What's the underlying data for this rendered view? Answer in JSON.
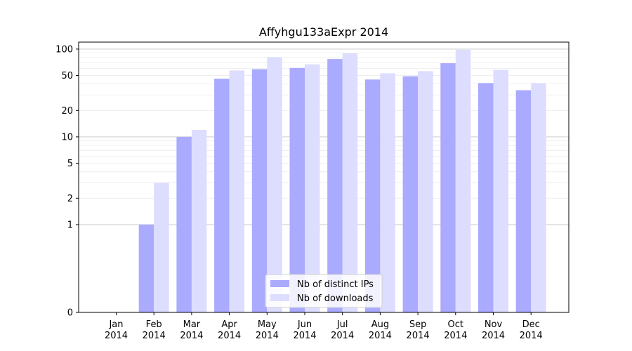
{
  "chart_data": {
    "type": "bar",
    "title": "Affyhgu133aExpr 2014",
    "xlabel": "",
    "ylabel": "",
    "categories": [
      "Jan\n2014",
      "Feb\n2014",
      "Mar\n2014",
      "Apr\n2014",
      "May\n2014",
      "Jun\n2014",
      "Jul\n2014",
      "Aug\n2014",
      "Sep\n2014",
      "Oct\n2014",
      "Nov\n2014",
      "Dec\n2014"
    ],
    "series": [
      {
        "name": "Nb of distinct IPs",
        "color": "#aaaaff",
        "values": [
          0,
          1,
          10,
          46,
          59,
          61,
          77,
          45,
          49,
          69,
          41,
          34
        ]
      },
      {
        "name": "Nb of downloads",
        "color": "#ddddff",
        "values": [
          0,
          3,
          12,
          57,
          81,
          67,
          90,
          53,
          56,
          98,
          58,
          41
        ]
      }
    ],
    "y_scale": "symlog",
    "ylim": [
      0,
      120
    ],
    "yticks": [
      0,
      1,
      2,
      5,
      10,
      20,
      50,
      100
    ],
    "grid": true,
    "legend_position": "lower-center"
  }
}
